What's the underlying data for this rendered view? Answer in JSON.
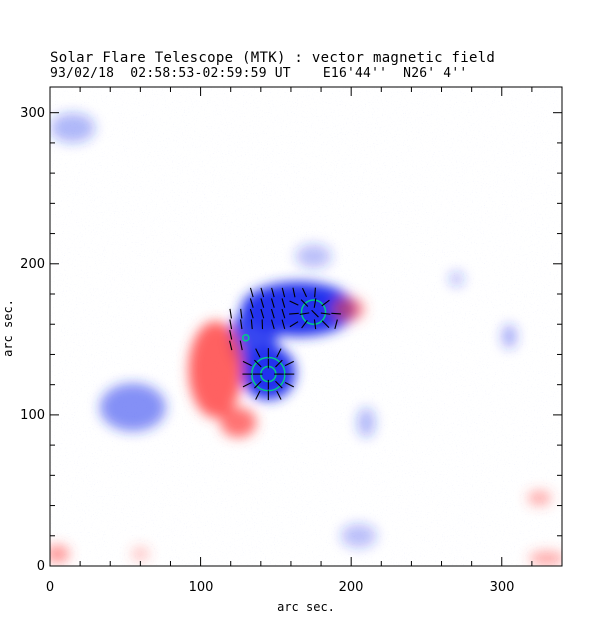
{
  "header": {
    "title": "Solar Flare Telescope (MTK) : vector magnetic field",
    "subtitle": "93/02/18  02:58:53-02:59:59 UT    E16'44''  N26' 4''"
  },
  "axes": {
    "xlabel": "arc sec.",
    "ylabel": "arc sec.",
    "xlim": [
      0,
      340
    ],
    "ylim": [
      0,
      317
    ],
    "x_ticks": [
      "0",
      "100",
      "200",
      "300"
    ],
    "y_ticks": [
      "0",
      "100",
      "200",
      "300"
    ]
  },
  "colors": {
    "positive_polarity": "#ff4444",
    "negative_polarity": "#2233ee",
    "contour": "#00cc88",
    "vector": "#000000"
  },
  "chart_data": {
    "type": "heatmap",
    "title": "Solar Flare Telescope (MTK) : vector magnetic field",
    "xlabel": "arc sec.",
    "ylabel": "arc sec.",
    "xlim": [
      0,
      340
    ],
    "ylim": [
      0,
      317
    ],
    "x_ticks": [
      0,
      100,
      200,
      300
    ],
    "y_ticks": [
      0,
      100,
      200,
      300
    ],
    "regions": [
      {
        "polarity": "negative",
        "x": 165,
        "y": 170,
        "rx": 38,
        "ry": 18,
        "strength": 1.0
      },
      {
        "polarity": "negative",
        "x": 145,
        "y": 128,
        "rx": 18,
        "ry": 18,
        "strength": 1.0
      },
      {
        "polarity": "negative",
        "x": 135,
        "y": 150,
        "rx": 16,
        "ry": 20,
        "strength": 0.9
      },
      {
        "polarity": "negative",
        "x": 55,
        "y": 105,
        "rx": 22,
        "ry": 16,
        "strength": 0.55
      },
      {
        "polarity": "negative",
        "x": 15,
        "y": 290,
        "rx": 15,
        "ry": 10,
        "strength": 0.35
      },
      {
        "polarity": "negative",
        "x": 175,
        "y": 205,
        "rx": 12,
        "ry": 8,
        "strength": 0.3
      },
      {
        "polarity": "negative",
        "x": 210,
        "y": 95,
        "rx": 6,
        "ry": 10,
        "strength": 0.35
      },
      {
        "polarity": "negative",
        "x": 305,
        "y": 152,
        "rx": 5,
        "ry": 8,
        "strength": 0.4
      },
      {
        "polarity": "negative",
        "x": 270,
        "y": 190,
        "rx": 5,
        "ry": 5,
        "strength": 0.3
      },
      {
        "polarity": "negative",
        "x": 205,
        "y": 20,
        "rx": 12,
        "ry": 8,
        "strength": 0.3
      },
      {
        "polarity": "positive",
        "x": 110,
        "y": 130,
        "rx": 18,
        "ry": 32,
        "strength": 0.85
      },
      {
        "polarity": "positive",
        "x": 125,
        "y": 95,
        "rx": 12,
        "ry": 10,
        "strength": 0.75
      },
      {
        "polarity": "positive",
        "x": 198,
        "y": 170,
        "rx": 11,
        "ry": 8,
        "strength": 0.6
      },
      {
        "polarity": "positive",
        "x": 5,
        "y": 8,
        "rx": 8,
        "ry": 6,
        "strength": 0.55
      },
      {
        "polarity": "positive",
        "x": 325,
        "y": 45,
        "rx": 8,
        "ry": 5,
        "strength": 0.45
      },
      {
        "polarity": "positive",
        "x": 330,
        "y": 5,
        "rx": 12,
        "ry": 5,
        "strength": 0.45
      },
      {
        "polarity": "positive",
        "x": 60,
        "y": 8,
        "rx": 6,
        "ry": 5,
        "strength": 0.3
      }
    ],
    "contours": [
      {
        "x": 145,
        "y": 127,
        "r": 5
      },
      {
        "x": 145,
        "y": 127,
        "r": 11
      },
      {
        "x": 175,
        "y": 168,
        "r": 8
      },
      {
        "x": 130,
        "y": 151,
        "r": 2
      }
    ],
    "vector_field": {
      "grid_spacing": 7,
      "centers": [
        {
          "x": 145,
          "y": 127
        },
        {
          "x": 175,
          "y": 168
        }
      ],
      "samples": [
        [
          120,
          160
        ],
        [
          127,
          160
        ],
        [
          134,
          160
        ],
        [
          141,
          160
        ],
        [
          148,
          160
        ],
        [
          155,
          160
        ],
        [
          162,
          160
        ],
        [
          169,
          160
        ],
        [
          176,
          160
        ],
        [
          183,
          160
        ],
        [
          190,
          160
        ],
        [
          120,
          167
        ],
        [
          127,
          167
        ],
        [
          134,
          167
        ],
        [
          141,
          167
        ],
        [
          148,
          167
        ],
        [
          155,
          167
        ],
        [
          162,
          167
        ],
        [
          169,
          167
        ],
        [
          176,
          167
        ],
        [
          183,
          167
        ],
        [
          190,
          167
        ],
        [
          134,
          174
        ],
        [
          141,
          174
        ],
        [
          148,
          174
        ],
        [
          155,
          174
        ],
        [
          162,
          174
        ],
        [
          169,
          174
        ],
        [
          176,
          174
        ],
        [
          183,
          174
        ],
        [
          134,
          181
        ],
        [
          141,
          181
        ],
        [
          148,
          181
        ],
        [
          155,
          181
        ],
        [
          162,
          181
        ],
        [
          169,
          181
        ],
        [
          176,
          181
        ],
        [
          120,
          153
        ],
        [
          127,
          146
        ],
        [
          120,
          146
        ],
        [
          131,
          134
        ],
        [
          138,
          134
        ],
        [
          145,
          134
        ],
        [
          152,
          134
        ],
        [
          159,
          134
        ],
        [
          131,
          127
        ],
        [
          138,
          127
        ],
        [
          152,
          127
        ],
        [
          159,
          127
        ],
        [
          131,
          120
        ],
        [
          138,
          120
        ],
        [
          145,
          120
        ],
        [
          152,
          120
        ],
        [
          159,
          120
        ],
        [
          138,
          113
        ],
        [
          145,
          113
        ],
        [
          152,
          113
        ],
        [
          145,
          141
        ],
        [
          152,
          141
        ],
        [
          138,
          141
        ]
      ]
    }
  }
}
